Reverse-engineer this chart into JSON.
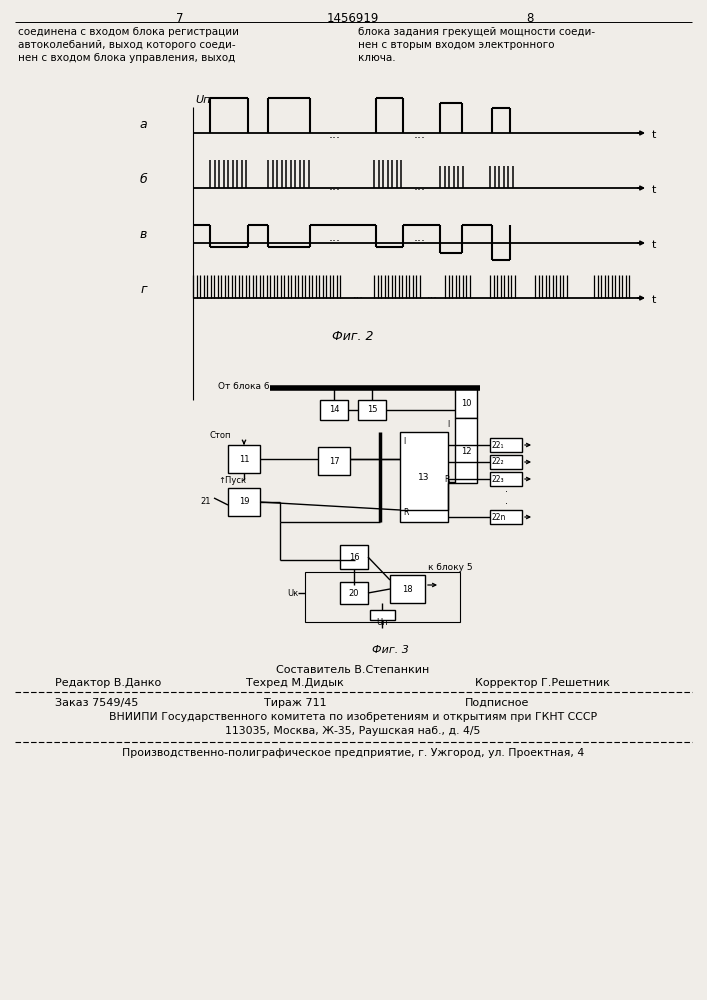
{
  "bg_color": "#f0ede8",
  "page_num_left": "7",
  "page_num_center": "1456919",
  "page_num_right": "8",
  "text_left": "соединена с входом блока регистрации\nавтоколебаний, выход которого соеди-\nнен с входом блока управления, выход",
  "text_right": "блока задания грекущей мощности соеди-\nнен с вторым входом электронного\nключа.",
  "fig2_label": "Фиг. 2",
  "fig3_label": "Фиг. 3",
  "footer_composer": "Составитель В.Степанкин",
  "footer_editor": "Редактор В.Данко",
  "footer_techred": "Техред М.Дидык",
  "footer_corrector": "Корректор Г.Решетник",
  "footer_order": "Заказ 7549/45",
  "footer_edition": "Тираж 711",
  "footer_subscription": "Подписное",
  "footer_vniipи": "ВНИИПИ Государственного комитета по изобретениям и открытиям при ГКНТ СССР",
  "footer_address": "113035, Москва, Ж-35, Раушская наб., д. 4/5",
  "footer_production": "Производственно-полиграфическое предприятие, г. Ужгород, ул. Проектная, 4"
}
